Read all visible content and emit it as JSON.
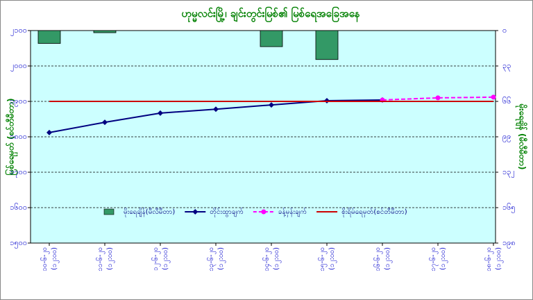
{
  "chart_data": {
    "type": "combo",
    "title": "ဟုမ္မလင်းမြို့၊ ချင်းတွင်းမြစ်၏ မြစ်ရေအခြေအနေ",
    "ylabel": "မြစ်ရေမှတ် (စင်တီမီတာ)",
    "y2label": "မိုးရေချိန် (မီလီမီတာ)",
    "categories": [
      "၁၀-၆-၂၀",
      "၁၁-၆-၂၀",
      "၁၂-၆-၂၀",
      "၁၃-၆-၂၀",
      "၁၄-၆-၂၀",
      "၁၅-၆-၂၀",
      "၁၆-၆-၂၀",
      "၁၇-၆-၂၀",
      "၁၈-၆-၂၀"
    ],
    "times": [
      "(၁၂:၀၀)",
      "(၁၂:၀၀)",
      "(၁၂:၀၀)",
      "(၁၂:၀၀)",
      "(၁၂:၀၀)",
      "(၁၂:၀၀)",
      "(၁၂:၀၀)",
      "(၁၂:၀၀)",
      "(၁၂:၀၀)"
    ],
    "ylim": [
      1500,
      2100
    ],
    "yticks": [
      {
        "value": 2100,
        "label": "၂၁၀၀"
      },
      {
        "value": 2000,
        "label": "၂၀၀၀"
      },
      {
        "value": 1900,
        "label": "၁၉၀၀"
      },
      {
        "value": 1800,
        "label": "၁၈၀၀"
      },
      {
        "value": 1700,
        "label": "၁၇၀၀"
      },
      {
        "value": 1600,
        "label": "၁၆၀၀"
      },
      {
        "value": 1500,
        "label": "၁၅၀၀"
      }
    ],
    "y2lim": [
      0,
      198
    ],
    "y2ticks": [
      {
        "value": 0,
        "label": "၀"
      },
      {
        "value": 33,
        "label": "၃၃"
      },
      {
        "value": 66,
        "label": "၆၆"
      },
      {
        "value": 99,
        "label": "၉၉"
      },
      {
        "value": 132,
        "label": "၁၃၂"
      },
      {
        "value": 165,
        "label": "၁၆၅"
      },
      {
        "value": 198,
        "label": "၁၉၈"
      }
    ],
    "y2_inverted": true,
    "grid": true,
    "series": [
      {
        "name": "မိုးရေချိန်(မီလီမီတာ)",
        "mark": "bar",
        "axis": "y2",
        "color": "#339966",
        "values": [
          12,
          2,
          null,
          null,
          15,
          27,
          null,
          null,
          null
        ]
      },
      {
        "name": "တိုင်းထွာချက်",
        "mark": "line",
        "color": "#000080",
        "marker": "diamond",
        "values": [
          1812,
          1841,
          1867,
          1878,
          1890,
          1902,
          1904,
          null,
          null
        ]
      },
      {
        "name": "ခန့်မှန်းချက်",
        "mark": "line",
        "color": "#ff00ff",
        "marker": "circle",
        "dashed": true,
        "values": [
          null,
          null,
          null,
          null,
          null,
          null,
          1904,
          1910,
          1912
        ]
      },
      {
        "name": "စိုးရိမ်ရေမှတ်(စင်တီမီတာ)",
        "mark": "line",
        "color": "#cc0000",
        "values": [
          1900,
          1900,
          1900,
          1900,
          1900,
          1900,
          1900,
          1900,
          1900
        ]
      }
    ]
  }
}
